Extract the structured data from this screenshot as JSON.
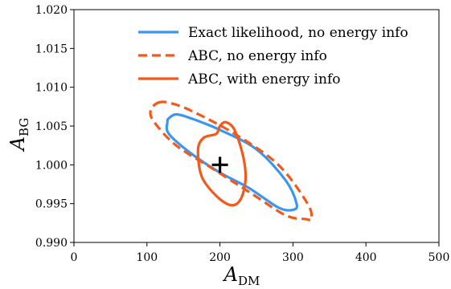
{
  "chart_data": {
    "type": "contour",
    "xlabel": {
      "main": "A",
      "sub": "DM"
    },
    "ylabel": {
      "main": "A",
      "sub": "BG"
    },
    "xlim": [
      0,
      500
    ],
    "ylim": [
      0.99,
      1.02
    ],
    "x_ticks": [
      "0",
      "100",
      "200",
      "300",
      "400",
      "500"
    ],
    "y_ticks": [
      "0.990",
      "0.995",
      "1.000",
      "1.005",
      "1.010",
      "1.015",
      "1.020"
    ],
    "legend_position": "top-right",
    "grid": false,
    "series": [
      {
        "name": "Exact likelihood,  no energy info",
        "color": "#3a96f0",
        "linestyle": "solid",
        "points": [
          [
            130,
            1.006
          ],
          [
            140,
            1.0065
          ],
          [
            160,
            1.006
          ],
          [
            200,
            1.0045
          ],
          [
            250,
            1.002
          ],
          [
            290,
            0.998
          ],
          [
            305,
            0.995
          ],
          [
            300,
            0.9942
          ],
          [
            280,
            0.9945
          ],
          [
            240,
            0.997
          ],
          [
            200,
            0.999
          ],
          [
            160,
            1.0015
          ],
          [
            130,
            1.004
          ],
          [
            128,
            1.0055
          ],
          [
            130,
            1.006
          ]
        ]
      },
      {
        "name": "ABC,  no energy info",
        "color": "#f25a1a",
        "linestyle": "dashed",
        "points": [
          [
            115,
            1.008
          ],
          [
            130,
            1.008
          ],
          [
            160,
            1.007
          ],
          [
            220,
            1.004
          ],
          [
            280,
            1.0
          ],
          [
            320,
            0.995
          ],
          [
            325,
            0.993
          ],
          [
            318,
            0.993
          ],
          [
            290,
            0.9935
          ],
          [
            240,
            0.9965
          ],
          [
            190,
            0.9995
          ],
          [
            140,
            1.0025
          ],
          [
            110,
            1.0055
          ],
          [
            105,
            1.007
          ],
          [
            115,
            1.008
          ]
        ]
      },
      {
        "name": "ABC,  with energy info",
        "color": "#f25a1a",
        "linestyle": "solid",
        "points": [
          [
            208,
            1.0055
          ],
          [
            220,
            1.0045
          ],
          [
            232,
            1.001
          ],
          [
            235,
            0.998
          ],
          [
            228,
            0.9955
          ],
          [
            215,
            0.9948
          ],
          [
            195,
            0.996
          ],
          [
            175,
            0.9985
          ],
          [
            170,
            1.002
          ],
          [
            178,
            1.0035
          ],
          [
            195,
            1.004
          ],
          [
            200,
            1.005
          ],
          [
            208,
            1.0055
          ]
        ]
      }
    ],
    "marker": {
      "x": 200,
      "y": 1.0,
      "symbol": "+"
    }
  }
}
